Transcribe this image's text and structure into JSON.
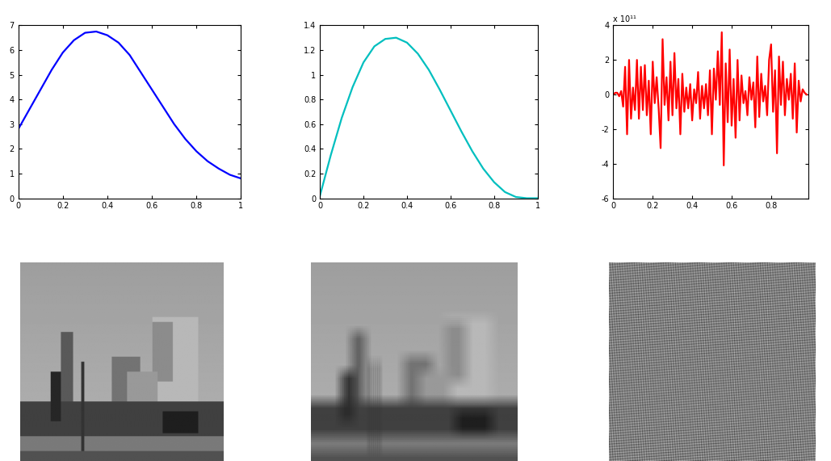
{
  "chart_data": [
    {
      "type": "line",
      "x": [
        0,
        0.05,
        0.1,
        0.15,
        0.2,
        0.25,
        0.3,
        0.35,
        0.4,
        0.45,
        0.5,
        0.55,
        0.6,
        0.65,
        0.7,
        0.75,
        0.8,
        0.85,
        0.9,
        0.95,
        1
      ],
      "values": [
        2.8,
        3.6,
        4.4,
        5.2,
        5.9,
        6.4,
        6.7,
        6.75,
        6.6,
        6.3,
        5.8,
        5.1,
        4.4,
        3.7,
        3.0,
        2.4,
        1.9,
        1.5,
        1.2,
        0.95,
        0.8
      ],
      "color": "#0000ff",
      "xlim": [
        0,
        1
      ],
      "xticks": [
        0,
        0.2,
        0.4,
        0.6,
        0.8,
        1
      ],
      "ylim": [
        0,
        7
      ],
      "yticks": [
        0,
        1,
        2,
        3,
        4,
        5,
        6,
        7
      ]
    },
    {
      "type": "line",
      "x": [
        0,
        0.05,
        0.1,
        0.15,
        0.2,
        0.25,
        0.3,
        0.35,
        0.4,
        0.45,
        0.5,
        0.55,
        0.6,
        0.65,
        0.7,
        0.75,
        0.8,
        0.85,
        0.9,
        0.95,
        1
      ],
      "values": [
        0.02,
        0.35,
        0.65,
        0.9,
        1.1,
        1.23,
        1.29,
        1.3,
        1.26,
        1.17,
        1.04,
        0.88,
        0.71,
        0.54,
        0.38,
        0.24,
        0.13,
        0.05,
        0.01,
        0,
        0
      ],
      "color": "#00bfbf",
      "xlim": [
        0,
        1
      ],
      "xticks": [
        0,
        0.2,
        0.4,
        0.6,
        0.8,
        1
      ],
      "ylim": [
        0,
        1.4
      ],
      "yticks": [
        0,
        0.2,
        0.4,
        0.6,
        0.8,
        1,
        1.2,
        1.4
      ]
    },
    {
      "type": "line",
      "annotation": "x 10¹¹",
      "x": [
        0,
        0.01,
        0.02,
        0.03,
        0.04,
        0.05,
        0.06,
        0.07,
        0.08,
        0.09,
        0.1,
        0.11,
        0.12,
        0.13,
        0.14,
        0.15,
        0.16,
        0.17,
        0.18,
        0.19,
        0.2,
        0.21,
        0.22,
        0.23,
        0.24,
        0.25,
        0.26,
        0.27,
        0.28,
        0.29,
        0.3,
        0.31,
        0.32,
        0.33,
        0.34,
        0.35,
        0.36,
        0.37,
        0.38,
        0.39,
        0.4,
        0.41,
        0.42,
        0.43,
        0.44,
        0.45,
        0.46,
        0.47,
        0.48,
        0.49,
        0.5,
        0.51,
        0.52,
        0.53,
        0.54,
        0.55,
        0.56,
        0.57,
        0.58,
        0.59,
        0.6,
        0.61,
        0.62,
        0.63,
        0.64,
        0.65,
        0.66,
        0.67,
        0.68,
        0.69,
        0.7,
        0.71,
        0.72,
        0.73,
        0.74,
        0.75,
        0.76,
        0.77,
        0.78,
        0.79,
        0.8,
        0.81,
        0.82,
        0.83,
        0.84,
        0.85,
        0.86,
        0.87,
        0.88,
        0.89,
        0.9,
        0.91,
        0.92,
        0.93,
        0.94,
        0.95,
        0.96,
        0.97,
        0.98
      ],
      "values": [
        0,
        0.1,
        0.1,
        -0.1,
        0.2,
        -0.7,
        1.6,
        -2.3,
        2.0,
        -1.4,
        0.4,
        -0.9,
        2.0,
        -1.4,
        1.6,
        -0.9,
        1.7,
        -1.2,
        0.8,
        -2.3,
        1.9,
        -0.5,
        1.0,
        -0.8,
        -3.1,
        3.2,
        -0.6,
        1.0,
        -1.5,
        1.9,
        -1.2,
        2.4,
        -0.8,
        0.9,
        -2.3,
        1.2,
        -1.0,
        0.4,
        -0.8,
        0.6,
        -1.5,
        0.3,
        -0.5,
        1.3,
        -1.4,
        0.5,
        -0.8,
        0.6,
        -1.2,
        1.4,
        -2.3,
        1.5,
        -0.3,
        2.5,
        -0.6,
        3.6,
        -4.1,
        1.8,
        -1.6,
        2.6,
        -1.8,
        0.9,
        -2.5,
        2.0,
        -1.5,
        1.1,
        -0.5,
        0.2,
        -1.2,
        1.0,
        -0.3,
        0.7,
        -1.9,
        2.2,
        -1.3,
        1.2,
        -0.4,
        0.5,
        -1.2,
        2.0,
        2.9,
        -1.0,
        1.4,
        -3.4,
        2.2,
        -0.6,
        1.9,
        -1.2,
        0.9,
        -0.3,
        1.2,
        -1.4,
        1.8,
        -2.2,
        0.8,
        -0.4,
        0.3,
        0.1,
        0.0
      ],
      "color": "#ff0000",
      "xlim": [
        0,
        0.99
      ],
      "xticks": [
        0,
        0.2,
        0.4,
        0.6,
        0.8
      ],
      "ylim": [
        -6,
        4
      ],
      "yticks": [
        -6,
        -4,
        -2,
        0,
        2,
        4
      ]
    }
  ]
}
